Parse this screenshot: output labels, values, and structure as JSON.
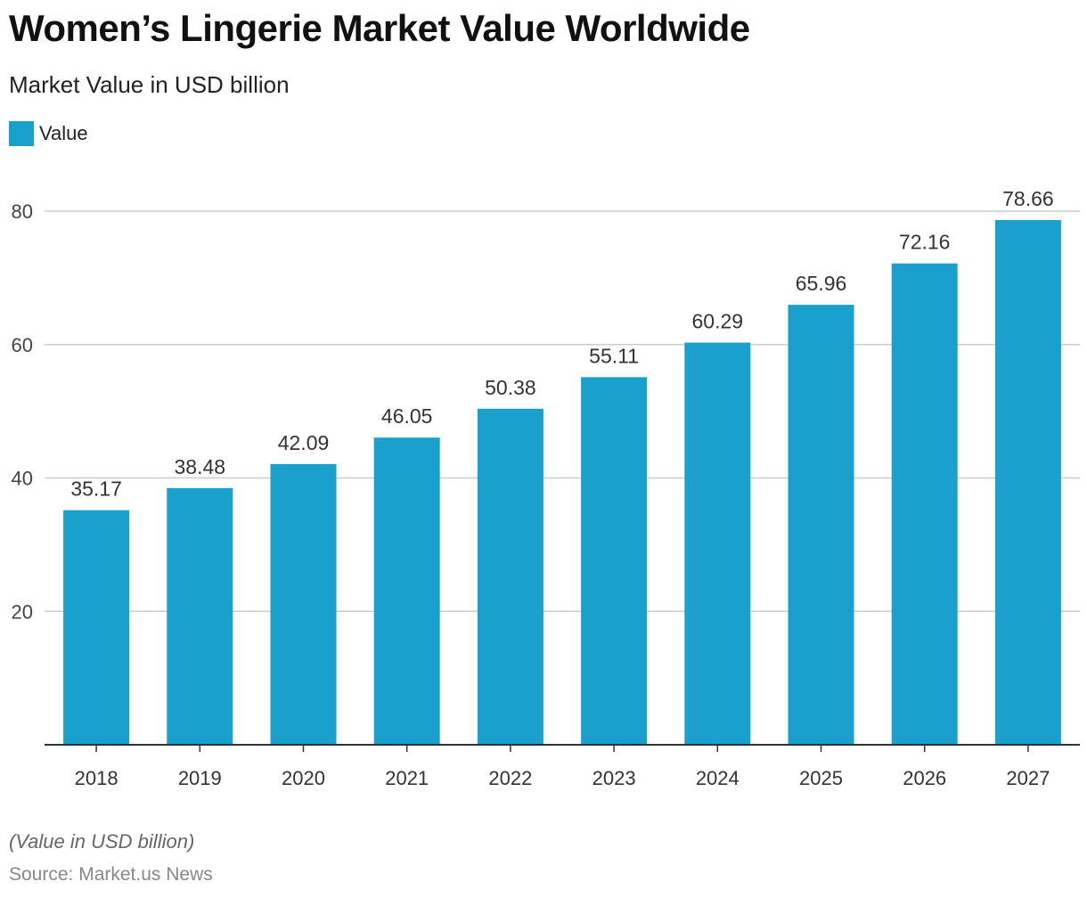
{
  "chart_data": {
    "type": "bar",
    "title": "Women’s Lingerie Market Value Worldwide",
    "subtitle": "Market Value in USD billion",
    "categories": [
      "2018",
      "2019",
      "2020",
      "2021",
      "2022",
      "2023",
      "2024",
      "2025",
      "2026",
      "2027"
    ],
    "series": [
      {
        "name": "Value",
        "values": [
          35.17,
          38.48,
          42.09,
          46.05,
          50.38,
          55.11,
          60.29,
          65.96,
          72.16,
          78.66
        ],
        "color": "#19a0cc"
      }
    ],
    "data_labels": [
      "35.17",
      "38.48",
      "42.09",
      "46.05",
      "50.38",
      "55.11",
      "60.29",
      "65.96",
      "72.16",
      "78.66"
    ],
    "y_ticks": [
      20,
      40,
      60,
      80
    ],
    "ylim": [
      0,
      80
    ],
    "grid": true,
    "legend_position": "top-left",
    "xlabel": "",
    "ylabel": ""
  },
  "footnote": "(Value in USD billion)",
  "source": "Source: Market.us News"
}
